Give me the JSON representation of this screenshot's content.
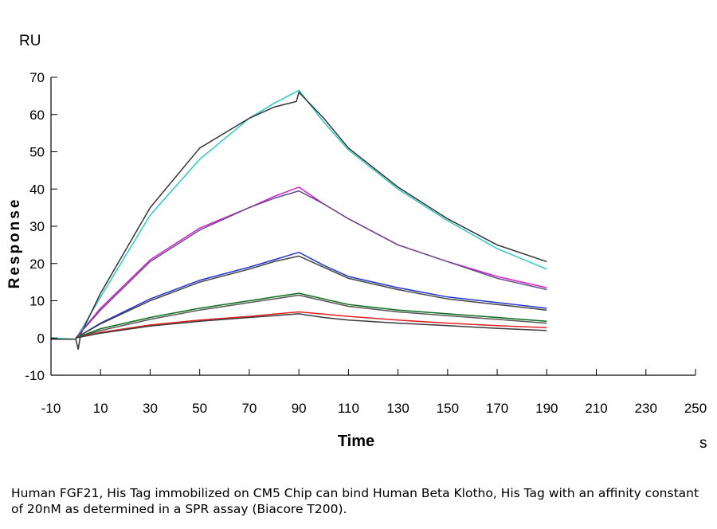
{
  "chart_data": {
    "type": "line",
    "y_unit": "RU",
    "ylabel": "Response",
    "xlabel": "Time",
    "x_unit": "s",
    "xlim": [
      -10,
      250
    ],
    "ylim": [
      -10,
      70
    ],
    "x_ticks": [
      -10,
      10,
      30,
      50,
      70,
      90,
      110,
      130,
      150,
      170,
      190,
      210,
      230,
      250
    ],
    "y_ticks": [
      -10,
      0,
      10,
      20,
      30,
      40,
      50,
      60,
      70
    ],
    "grid": false,
    "series": [
      {
        "color": "#2cc7c4",
        "points": [
          [
            -10,
            0
          ],
          [
            0,
            -0.3
          ],
          [
            10,
            11
          ],
          [
            30,
            33
          ],
          [
            50,
            48
          ],
          [
            70,
            59
          ],
          [
            80,
            63
          ],
          [
            90,
            66.5
          ],
          [
            100,
            58
          ],
          [
            110,
            50.5
          ],
          [
            130,
            40
          ],
          [
            150,
            31.5
          ],
          [
            170,
            24
          ],
          [
            190,
            18.5
          ]
        ]
      },
      {
        "color": "#333333",
        "points": [
          [
            -10,
            -0.3
          ],
          [
            0,
            -0.3
          ],
          [
            1,
            -3
          ],
          [
            2,
            1
          ],
          [
            10,
            12
          ],
          [
            30,
            35
          ],
          [
            50,
            51
          ],
          [
            70,
            59
          ],
          [
            80,
            62
          ],
          [
            89,
            63.5
          ],
          [
            90,
            66
          ],
          [
            100,
            59
          ],
          [
            110,
            51
          ],
          [
            130,
            40.5
          ],
          [
            150,
            32
          ],
          [
            170,
            25
          ],
          [
            190,
            20.5
          ]
        ]
      },
      {
        "color": "#cc22cc",
        "points": [
          [
            0,
            0
          ],
          [
            10,
            8
          ],
          [
            30,
            21
          ],
          [
            50,
            29.5
          ],
          [
            70,
            35
          ],
          [
            80,
            38
          ],
          [
            90,
            40.5
          ],
          [
            100,
            36
          ],
          [
            110,
            32
          ],
          [
            130,
            25
          ],
          [
            150,
            20.5
          ],
          [
            170,
            16.5
          ],
          [
            190,
            13.5
          ]
        ]
      },
      {
        "color": "#6a4a8a",
        "points": [
          [
            0,
            0
          ],
          [
            10,
            7.5
          ],
          [
            30,
            20.5
          ],
          [
            50,
            29
          ],
          [
            70,
            35
          ],
          [
            80,
            37.5
          ],
          [
            90,
            39.5
          ],
          [
            100,
            36
          ],
          [
            110,
            32
          ],
          [
            130,
            25
          ],
          [
            150,
            20.5
          ],
          [
            170,
            16
          ],
          [
            190,
            13
          ]
        ]
      },
      {
        "color": "#2233cc",
        "points": [
          [
            0,
            0
          ],
          [
            10,
            4
          ],
          [
            30,
            10.5
          ],
          [
            50,
            15.5
          ],
          [
            70,
            19
          ],
          [
            80,
            21
          ],
          [
            90,
            23
          ],
          [
            100,
            19.5
          ],
          [
            110,
            16.5
          ],
          [
            130,
            13.5
          ],
          [
            150,
            11
          ],
          [
            170,
            9.5
          ],
          [
            190,
            8
          ]
        ]
      },
      {
        "color": "#444444",
        "points": [
          [
            0,
            0
          ],
          [
            10,
            3.8
          ],
          [
            30,
            10
          ],
          [
            50,
            15
          ],
          [
            70,
            18.5
          ],
          [
            80,
            20.5
          ],
          [
            90,
            22
          ],
          [
            100,
            19
          ],
          [
            110,
            16
          ],
          [
            130,
            13
          ],
          [
            150,
            10.5
          ],
          [
            170,
            9
          ],
          [
            190,
            7.5
          ]
        ]
      },
      {
        "color": "#0b6b1c",
        "points": [
          [
            0,
            0
          ],
          [
            10,
            2.5
          ],
          [
            30,
            5.5
          ],
          [
            50,
            8
          ],
          [
            70,
            10
          ],
          [
            80,
            11
          ],
          [
            90,
            12
          ],
          [
            100,
            10.5
          ],
          [
            110,
            9
          ],
          [
            130,
            7.5
          ],
          [
            150,
            6.5
          ],
          [
            170,
            5.5
          ],
          [
            190,
            4.5
          ]
        ]
      },
      {
        "color": "#555555",
        "points": [
          [
            0,
            0
          ],
          [
            10,
            2
          ],
          [
            30,
            5
          ],
          [
            50,
            7.5
          ],
          [
            70,
            9.5
          ],
          [
            80,
            10.5
          ],
          [
            90,
            11.5
          ],
          [
            100,
            10
          ],
          [
            110,
            8.5
          ],
          [
            130,
            7
          ],
          [
            150,
            6
          ],
          [
            170,
            5
          ],
          [
            190,
            4
          ]
        ]
      },
      {
        "color": "#e02020",
        "points": [
          [
            0,
            0
          ],
          [
            10,
            1.5
          ],
          [
            30,
            3.5
          ],
          [
            50,
            4.8
          ],
          [
            70,
            5.8
          ],
          [
            80,
            6.4
          ],
          [
            90,
            7
          ],
          [
            100,
            6.4
          ],
          [
            110,
            5.8
          ],
          [
            130,
            4.8
          ],
          [
            150,
            4
          ],
          [
            170,
            3.3
          ],
          [
            190,
            2.8
          ]
        ]
      },
      {
        "color": "#3a3a3a",
        "points": [
          [
            0,
            0
          ],
          [
            10,
            1.3
          ],
          [
            30,
            3.2
          ],
          [
            50,
            4.5
          ],
          [
            70,
            5.5
          ],
          [
            80,
            6
          ],
          [
            90,
            6.5
          ],
          [
            100,
            5.5
          ],
          [
            110,
            4.8
          ],
          [
            130,
            4
          ],
          [
            150,
            3.3
          ],
          [
            170,
            2.6
          ],
          [
            190,
            2
          ]
        ]
      }
    ]
  },
  "caption": "Human FGF21, His Tag immobilized on CM5 Chip can bind Human Beta Klotho, His Tag with an affinity constant of 20nM as determined in a SPR assay (Biacore T200)."
}
